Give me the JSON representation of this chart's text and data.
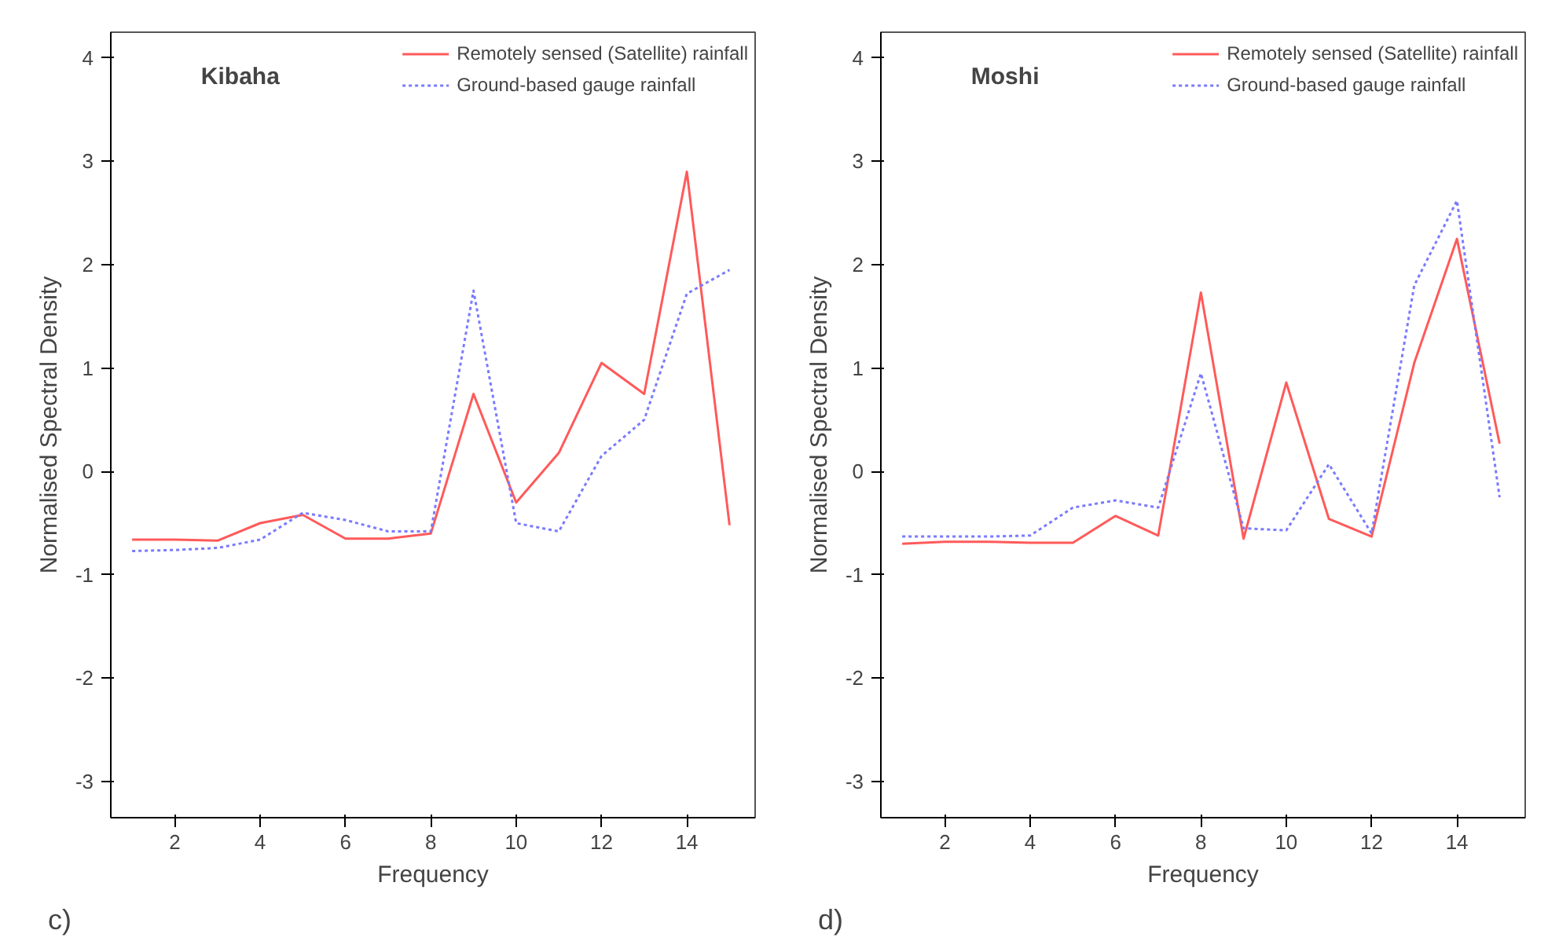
{
  "chart_data": [
    {
      "type": "line",
      "title": "Kibaha",
      "xlabel": "Frequency",
      "ylabel": "Normalised Spectral Density",
      "annotations": [
        "c)"
      ],
      "x": [
        1,
        2,
        3,
        4,
        5,
        6,
        7,
        8,
        9,
        10,
        11,
        12,
        13,
        14,
        15
      ],
      "xlim": [
        0.5,
        15.6
      ],
      "xticks": [
        2,
        4,
        6,
        8,
        10,
        12,
        14
      ],
      "ylim": [
        -3.35,
        4.25
      ],
      "yticks": [
        -3,
        -2,
        -1,
        0,
        1,
        2,
        3,
        4
      ],
      "grid": false,
      "legend": "top right",
      "series": [
        {
          "name": "Remotely sensed (Satellite) rainfall",
          "color": "#ff5a5a",
          "line_style": "solid",
          "values": [
            -0.66,
            -0.66,
            -0.67,
            -0.5,
            -0.42,
            -0.65,
            -0.65,
            -0.6,
            0.75,
            -0.3,
            0.18,
            1.05,
            0.75,
            2.9,
            -0.52
          ]
        },
        {
          "name": "Ground-based gauge rainfall",
          "color": "#7a7aff",
          "line_style": "dotted",
          "values": [
            -0.77,
            -0.76,
            -0.74,
            -0.66,
            -0.4,
            -0.47,
            -0.58,
            -0.58,
            1.75,
            -0.5,
            -0.58,
            0.15,
            0.5,
            1.72,
            1.95
          ]
        }
      ]
    },
    {
      "type": "line",
      "title": "Moshi",
      "xlabel": "Frequency",
      "ylabel": "Normalised Spectral Density",
      "annotations": [
        "d)"
      ],
      "x": [
        1,
        2,
        3,
        4,
        5,
        6,
        7,
        8,
        9,
        10,
        11,
        12,
        13,
        14,
        15
      ],
      "xlim": [
        0.5,
        15.6
      ],
      "xticks": [
        2,
        4,
        6,
        8,
        10,
        12,
        14
      ],
      "ylim": [
        -3.35,
        4.25
      ],
      "yticks": [
        -3,
        -2,
        -1,
        0,
        1,
        2,
        3,
        4
      ],
      "grid": false,
      "legend": "top right",
      "series": [
        {
          "name": "Remotely sensed (Satellite) rainfall",
          "color": "#ff5a5a",
          "line_style": "solid",
          "values": [
            -0.7,
            -0.68,
            -0.68,
            -0.69,
            -0.69,
            -0.43,
            -0.62,
            1.73,
            -0.65,
            0.86,
            -0.46,
            -0.63,
            1.05,
            2.25,
            0.27
          ]
        },
        {
          "name": "Ground-based gauge rainfall",
          "color": "#7a7aff",
          "line_style": "dotted",
          "values": [
            -0.63,
            -0.63,
            -0.63,
            -0.62,
            -0.35,
            -0.28,
            -0.35,
            0.95,
            -0.55,
            -0.57,
            0.07,
            -0.6,
            1.8,
            2.62,
            -0.25
          ]
        }
      ]
    }
  ]
}
